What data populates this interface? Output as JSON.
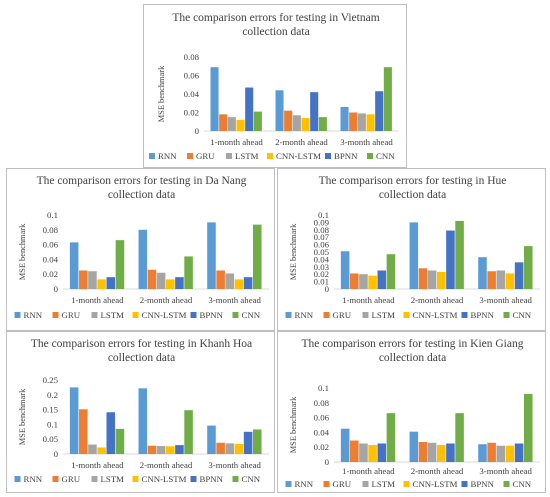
{
  "palette": {
    "RNN": "#5b9bd5",
    "GRU": "#ed7d31",
    "LSTM": "#a5a5a5",
    "CNN-LSTM": "#ffc000",
    "BPNN": "#4472c4",
    "CNN": "#70ad47"
  },
  "chart_data": [
    {
      "id": "vietnam",
      "type": "bar",
      "title_lines": [
        "The comparison errors for testing in Vietnam",
        "collection data"
      ],
      "ylabel": "MSE benchmark",
      "xlabel": "",
      "categories": [
        "1-month ahead",
        "2-month ahead",
        "3-month ahead"
      ],
      "ylim": [
        0,
        0.08
      ],
      "yticks": [
        0,
        0.02,
        0.04,
        0.06,
        0.08
      ],
      "ytick_labels": [
        "0",
        "0.02",
        "0.04",
        "0.06",
        "0.08"
      ],
      "grid": false,
      "legend_position": "bottom",
      "series": [
        {
          "name": "RNN",
          "values": [
            0.069,
            0.044,
            0.026
          ]
        },
        {
          "name": "GRU",
          "values": [
            0.018,
            0.022,
            0.02
          ]
        },
        {
          "name": "LSTM",
          "values": [
            0.015,
            0.017,
            0.019
          ]
        },
        {
          "name": "CNN-LSTM",
          "values": [
            0.012,
            0.014,
            0.018
          ]
        },
        {
          "name": "BPNN",
          "values": [
            0.047,
            0.042,
            0.043
          ]
        },
        {
          "name": "CNN",
          "values": [
            0.021,
            0.015,
            0.069
          ]
        }
      ]
    },
    {
      "id": "danang",
      "type": "bar",
      "title_lines": [
        "The comparison errors for testing in Da Nang",
        "collection data"
      ],
      "ylabel": "MSE benchmark",
      "xlabel": "",
      "categories": [
        "1-month ahead",
        "2-month ahead",
        "3-month ahead"
      ],
      "ylim": [
        0,
        0.1
      ],
      "yticks": [
        0,
        0.02,
        0.04,
        0.06,
        0.08,
        0.1
      ],
      "ytick_labels": [
        "0",
        "0.02",
        "0.04",
        "0.06",
        "0.08",
        "0.1"
      ],
      "grid": false,
      "legend_position": "bottom",
      "series": [
        {
          "name": "RNN",
          "values": [
            0.063,
            0.08,
            0.09
          ]
        },
        {
          "name": "GRU",
          "values": [
            0.025,
            0.026,
            0.025
          ]
        },
        {
          "name": "LSTM",
          "values": [
            0.024,
            0.022,
            0.021
          ]
        },
        {
          "name": "CNN-LSTM",
          "values": [
            0.013,
            0.013,
            0.013
          ]
        },
        {
          "name": "BPNN",
          "values": [
            0.016,
            0.016,
            0.016
          ]
        },
        {
          "name": "CNN",
          "values": [
            0.066,
            0.044,
            0.087
          ]
        }
      ]
    },
    {
      "id": "hue",
      "type": "bar",
      "title_lines": [
        "The comparison errors for testing in Hue",
        "collection data"
      ],
      "ylabel": "MSE benchmark",
      "xlabel": "",
      "categories": [
        "1-month ahead",
        "2-month ahead",
        "3-month ahead"
      ],
      "ylim": [
        0,
        0.1
      ],
      "yticks": [
        0,
        0.01,
        0.02,
        0.03,
        0.04,
        0.05,
        0.06,
        0.07,
        0.08,
        0.09,
        0.1
      ],
      "ytick_labels": [
        "0",
        "0.01",
        "0.02",
        "0.03",
        "0.04",
        "0.05",
        "0.06",
        "0.07",
        "0.08",
        "0.09",
        "0.1"
      ],
      "grid": false,
      "legend_position": "bottom",
      "series": [
        {
          "name": "RNN",
          "values": [
            0.051,
            0.09,
            0.043
          ]
        },
        {
          "name": "GRU",
          "values": [
            0.021,
            0.028,
            0.024
          ]
        },
        {
          "name": "LSTM",
          "values": [
            0.02,
            0.025,
            0.025
          ]
        },
        {
          "name": "CNN-LSTM",
          "values": [
            0.018,
            0.023,
            0.021
          ]
        },
        {
          "name": "BPNN",
          "values": [
            0.025,
            0.079,
            0.036
          ]
        },
        {
          "name": "CNN",
          "values": [
            0.047,
            0.092,
            0.058
          ]
        }
      ]
    },
    {
      "id": "khanhhoa",
      "type": "bar",
      "title_lines": [
        "The comparison errors for testing in Khanh Hoa",
        "collection data"
      ],
      "ylabel": "MSE benchmark",
      "xlabel": "",
      "categories": [
        "1-month ahead",
        "2-month ahead",
        "3-month ahead"
      ],
      "ylim": [
        0,
        0.25
      ],
      "yticks": [
        0,
        0.05,
        0.1,
        0.15,
        0.2,
        0.25
      ],
      "ytick_labels": [
        "0",
        "0.05",
        "0.1",
        "0.15",
        "0.2",
        "0.25"
      ],
      "grid": false,
      "legend_position": "bottom",
      "series": [
        {
          "name": "RNN",
          "values": [
            0.225,
            0.222,
            0.096
          ]
        },
        {
          "name": "GRU",
          "values": [
            0.151,
            0.028,
            0.038
          ]
        },
        {
          "name": "LSTM",
          "values": [
            0.032,
            0.027,
            0.036
          ]
        },
        {
          "name": "CNN-LSTM",
          "values": [
            0.022,
            0.026,
            0.034
          ]
        },
        {
          "name": "BPNN",
          "values": [
            0.141,
            0.03,
            0.075
          ]
        },
        {
          "name": "CNN",
          "values": [
            0.085,
            0.148,
            0.083
          ]
        }
      ]
    },
    {
      "id": "kiengiang",
      "type": "bar",
      "title_lines": [
        "The comparison errors for testing in Kien Giang",
        "collection data"
      ],
      "ylabel": "MSE benchmark",
      "xlabel": "",
      "categories": [
        "1-month ahead",
        "2-month ahead",
        "3-month ahead"
      ],
      "ylim": [
        0,
        0.1
      ],
      "yticks": [
        0,
        0.02,
        0.04,
        0.06,
        0.08,
        0.1
      ],
      "ytick_labels": [
        "0",
        "0.02",
        "0.04",
        "0.06",
        "0.08",
        "0.1"
      ],
      "grid": false,
      "legend_position": "bottom",
      "series": [
        {
          "name": "RNN",
          "values": [
            0.045,
            0.041,
            0.024
          ]
        },
        {
          "name": "GRU",
          "values": [
            0.029,
            0.027,
            0.026
          ]
        },
        {
          "name": "LSTM",
          "values": [
            0.025,
            0.026,
            0.022
          ]
        },
        {
          "name": "CNN-LSTM",
          "values": [
            0.023,
            0.023,
            0.022
          ]
        },
        {
          "name": "BPNN",
          "values": [
            0.025,
            0.025,
            0.025
          ]
        },
        {
          "name": "CNN",
          "values": [
            0.066,
            0.066,
            0.092
          ]
        }
      ]
    }
  ]
}
